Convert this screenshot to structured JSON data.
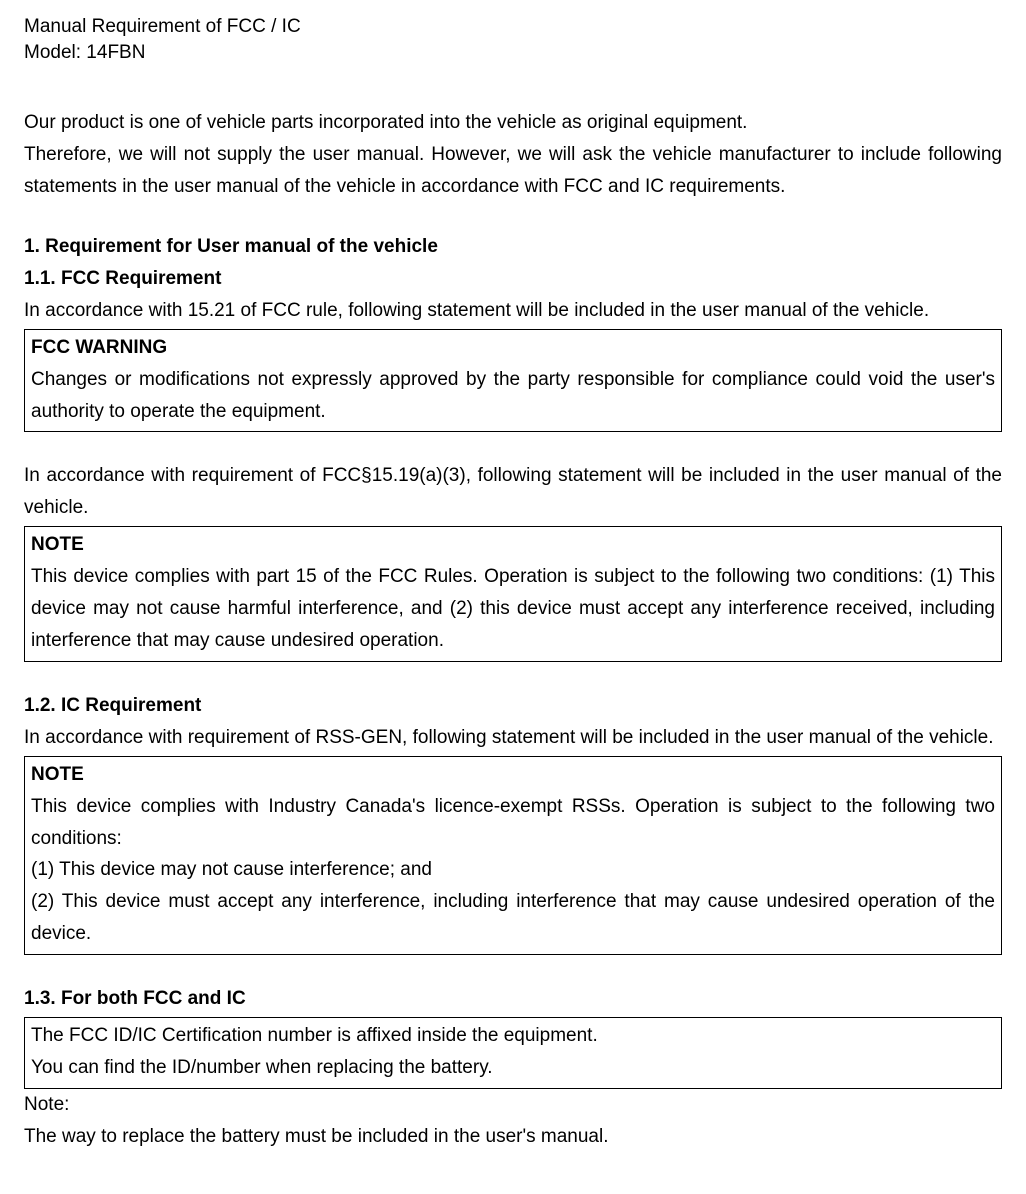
{
  "header": {
    "title": "Manual Requirement of FCC / IC",
    "model": "Model: 14FBN"
  },
  "intro": {
    "line1": "Our product is one of vehicle parts incorporated into the vehicle as original equipment.",
    "line2": "Therefore, we will not supply the user manual.   However, we will ask the vehicle manufacturer to include following statements in the user manual of the vehicle in accordance with FCC and IC requirements."
  },
  "s1": {
    "heading": "1. Requirement for User manual of the vehicle",
    "s11": {
      "heading": "1.1. FCC Requirement",
      "lead": "In accordance with 15.21 of FCC rule, following statement will be included in the user manual of the vehicle.",
      "box1": {
        "title": "FCC WARNING",
        "text": "Changes or modifications not expressly approved by the party responsible for compliance could void the user's authority to operate the equipment."
      },
      "lead2": "In accordance with requirement of FCC§15.19(a)(3), following statement will be included in the user manual of the vehicle.",
      "box2": {
        "title": "NOTE",
        "text": "This device complies with part 15 of the FCC Rules.   Operation is subject to the following two conditions: (1) This device may not cause harmful interference, and (2) this device must accept any interference received, including interference that may cause undesired operation."
      }
    },
    "s12": {
      "heading": "1.2. IC Requirement",
      "lead": "In accordance with requirement of RSS-GEN, following statement will be included in the user manual of the vehicle.",
      "box": {
        "title": "NOTE",
        "l1": "This device complies with Industry Canada's licence-exempt RSSs. Operation is subject to the following two conditions:",
        "l2": "(1) This device may not cause interference; and",
        "l3": "(2) This device must accept any interference, including interference that may cause undesired operation of the device."
      }
    },
    "s13": {
      "heading": "1.3. For both FCC and IC",
      "box": {
        "l1": "The FCC ID/IC Certification number is affixed inside the equipment.",
        "l2": "You can find the ID/number when replacing the battery."
      },
      "note_label": "Note:",
      "note_text": "The way to replace the battery must be included in the user's manual."
    }
  },
  "colors": {
    "text": "#000000",
    "background": "#ffffff",
    "border": "#000000"
  },
  "typography": {
    "body_fontsize_pt": 14,
    "font_family": "Arial",
    "line_height": 1.68
  }
}
